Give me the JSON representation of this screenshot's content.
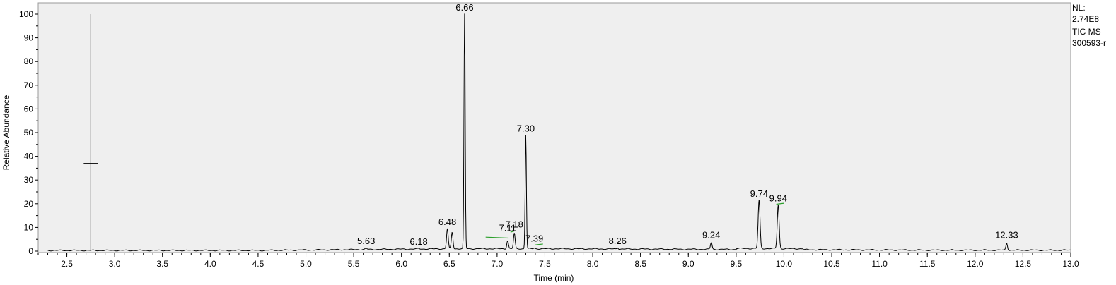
{
  "chart_data": {
    "type": "line",
    "title": "",
    "xlabel": "Time (min)",
    "ylabel": "Relative Abundance",
    "xlim": [
      2.2,
      13.0
    ],
    "ylim": [
      0,
      100
    ],
    "x_ticks": [
      "2.5",
      "3.0",
      "3.5",
      "4.0",
      "4.5",
      "5.0",
      "5.5",
      "6.0",
      "6.5",
      "7.0",
      "7.5",
      "8.0",
      "8.5",
      "9.0",
      "9.5",
      "10.0",
      "10.5",
      "11.0",
      "11.5",
      "12.0",
      "12.5",
      "13.0"
    ],
    "y_ticks": [
      "0",
      "10",
      "20",
      "30",
      "40",
      "50",
      "60",
      "70",
      "80",
      "90",
      "100"
    ],
    "grid": false,
    "background": "#efefef",
    "trace_color": "#000000",
    "baseline_marker_color": "#2ca02c",
    "peaks": [
      {
        "x": 5.63,
        "y": 1.5,
        "label": "5.63"
      },
      {
        "x": 6.18,
        "y": 1.2,
        "label": "6.18"
      },
      {
        "x": 6.48,
        "y": 9.5,
        "label": "6.48"
      },
      {
        "x": 6.53,
        "y": 8.0,
        "label": ""
      },
      {
        "x": 6.66,
        "y": 100,
        "label": "6.66"
      },
      {
        "x": 7.11,
        "y": 4.5,
        "label": "7.11"
      },
      {
        "x": 7.18,
        "y": 7.5,
        "label": "7.18"
      },
      {
        "x": 7.3,
        "y": 49,
        "label": "7.30"
      },
      {
        "x": 7.39,
        "y": 1.3,
        "label": "7.39"
      },
      {
        "x": 8.26,
        "y": 1.5,
        "label": "8.26"
      },
      {
        "x": 9.24,
        "y": 4.0,
        "label": "9.24"
      },
      {
        "x": 9.74,
        "y": 21.5,
        "label": "9.74"
      },
      {
        "x": 9.94,
        "y": 19.5,
        "label": "9.94"
      },
      {
        "x": 12.33,
        "y": 4.0,
        "label": "12.33"
      }
    ],
    "marker": {
      "x": 2.75,
      "y_top": 100,
      "y_cross": 37
    },
    "info_lines": [
      "NL:",
      "2.74E8",
      "TIC  MS",
      "300593-r"
    ]
  }
}
